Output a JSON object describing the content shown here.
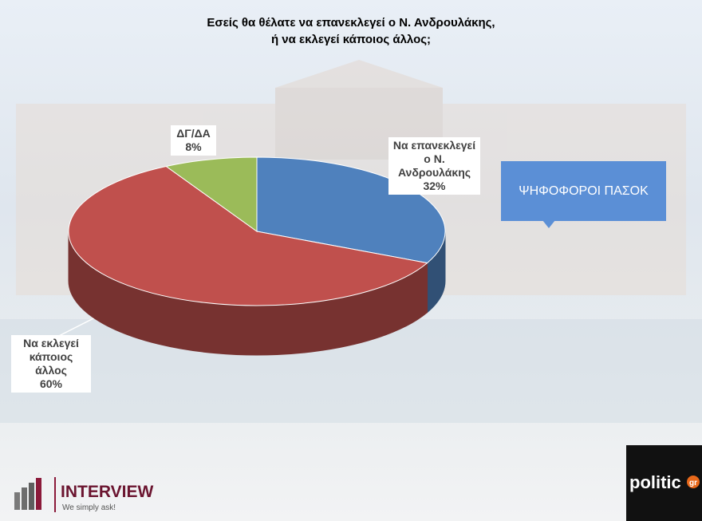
{
  "chart_data": {
    "type": "pie",
    "title": "Εσείς θα θέλατε να επανεκλεγεί ο Ν. Ανδρουλάκης,\nή να εκλεγεί κάποιος άλλος;",
    "categories": [
      "Να επανεκλεγεί ο Ν. Ανδρουλάκης",
      "Να εκλεγεί κάποιος άλλος",
      "ΔΓ/ΔΑ"
    ],
    "values": [
      32,
      60,
      8
    ],
    "value_labels": [
      "32%",
      "60%",
      "8%"
    ],
    "colors": [
      "#4f81bd",
      "#c0504d",
      "#9bbb59"
    ],
    "annotation": "ΨΗΦΟΦΟΡΟΙ ΠΑΣΟΚ",
    "branding": {
      "left": "INTERVIEW",
      "left_tagline": "We simply ask!",
      "right": "politic",
      "right_suffix": "gr"
    }
  }
}
